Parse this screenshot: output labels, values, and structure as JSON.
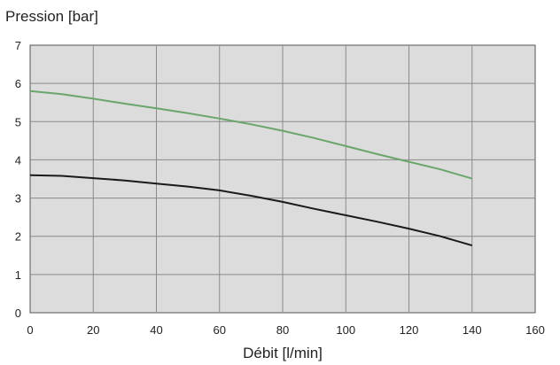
{
  "chart_data": {
    "type": "line",
    "ylabel": "Pression [bar]",
    "xlabel": "Débit [l/min]",
    "xlim": [
      0,
      160
    ],
    "ylim": [
      0,
      7
    ],
    "x_ticks": [
      0,
      20,
      40,
      60,
      80,
      100,
      120,
      140,
      160
    ],
    "y_ticks": [
      0,
      1,
      2,
      3,
      4,
      5,
      6,
      7
    ],
    "grid": true,
    "plot_background": "#dcdcdc",
    "series": [
      {
        "color": "#6aa56c",
        "x": [
          0,
          10,
          20,
          30,
          40,
          50,
          60,
          70,
          80,
          90,
          100,
          110,
          120,
          130,
          140
        ],
        "y": [
          5.8,
          5.72,
          5.6,
          5.47,
          5.35,
          5.22,
          5.08,
          4.93,
          4.76,
          4.57,
          4.36,
          4.15,
          3.95,
          3.75,
          3.51
        ]
      },
      {
        "color": "#1a1a1a",
        "x": [
          0,
          10,
          20,
          30,
          40,
          50,
          60,
          70,
          80,
          90,
          100,
          110,
          120,
          130,
          140
        ],
        "y": [
          3.6,
          3.58,
          3.52,
          3.46,
          3.38,
          3.3,
          3.2,
          3.06,
          2.9,
          2.72,
          2.55,
          2.38,
          2.2,
          2.0,
          1.76
        ]
      }
    ]
  }
}
